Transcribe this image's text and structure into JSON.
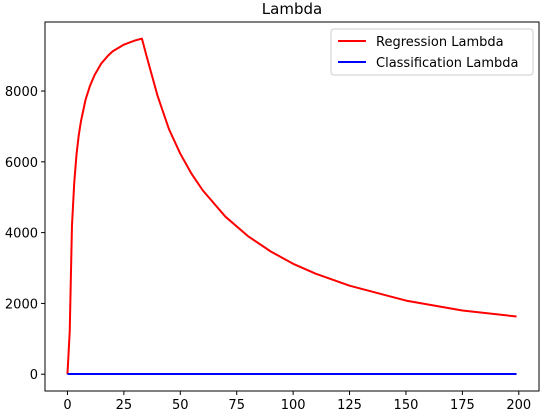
{
  "chart_data": {
    "type": "line",
    "title": "Lambda",
    "xlabel": "",
    "ylabel": "",
    "xlim": [
      -9.95,
      208.95
    ],
    "ylim": [
      -474,
      9950
    ],
    "grid": false,
    "legend_position": "top-right",
    "x_ticks": [
      0,
      25,
      50,
      75,
      100,
      125,
      150,
      175,
      200
    ],
    "y_ticks": [
      0,
      2000,
      4000,
      6000,
      8000
    ],
    "series": [
      {
        "name": "Regression Lambda",
        "color": "#ff0000",
        "x": [
          0,
          1,
          2,
          3,
          4,
          5,
          6,
          8,
          10,
          12,
          15,
          18,
          20,
          25,
          30,
          33,
          35,
          40,
          45,
          50,
          55,
          60,
          70,
          80,
          90,
          100,
          110,
          125,
          150,
          175,
          199
        ],
        "y": [
          0,
          1200,
          4200,
          5400,
          6200,
          6750,
          7150,
          7750,
          8150,
          8450,
          8780,
          9000,
          9120,
          9310,
          9430,
          9480,
          9000,
          7850,
          6920,
          6230,
          5660,
          5190,
          4450,
          3900,
          3470,
          3120,
          2840,
          2500,
          2080,
          1800,
          1630
        ]
      },
      {
        "name": "Classification Lambda",
        "color": "#0000ff",
        "x": [
          0,
          199
        ],
        "y": [
          5,
          5
        ]
      }
    ]
  }
}
